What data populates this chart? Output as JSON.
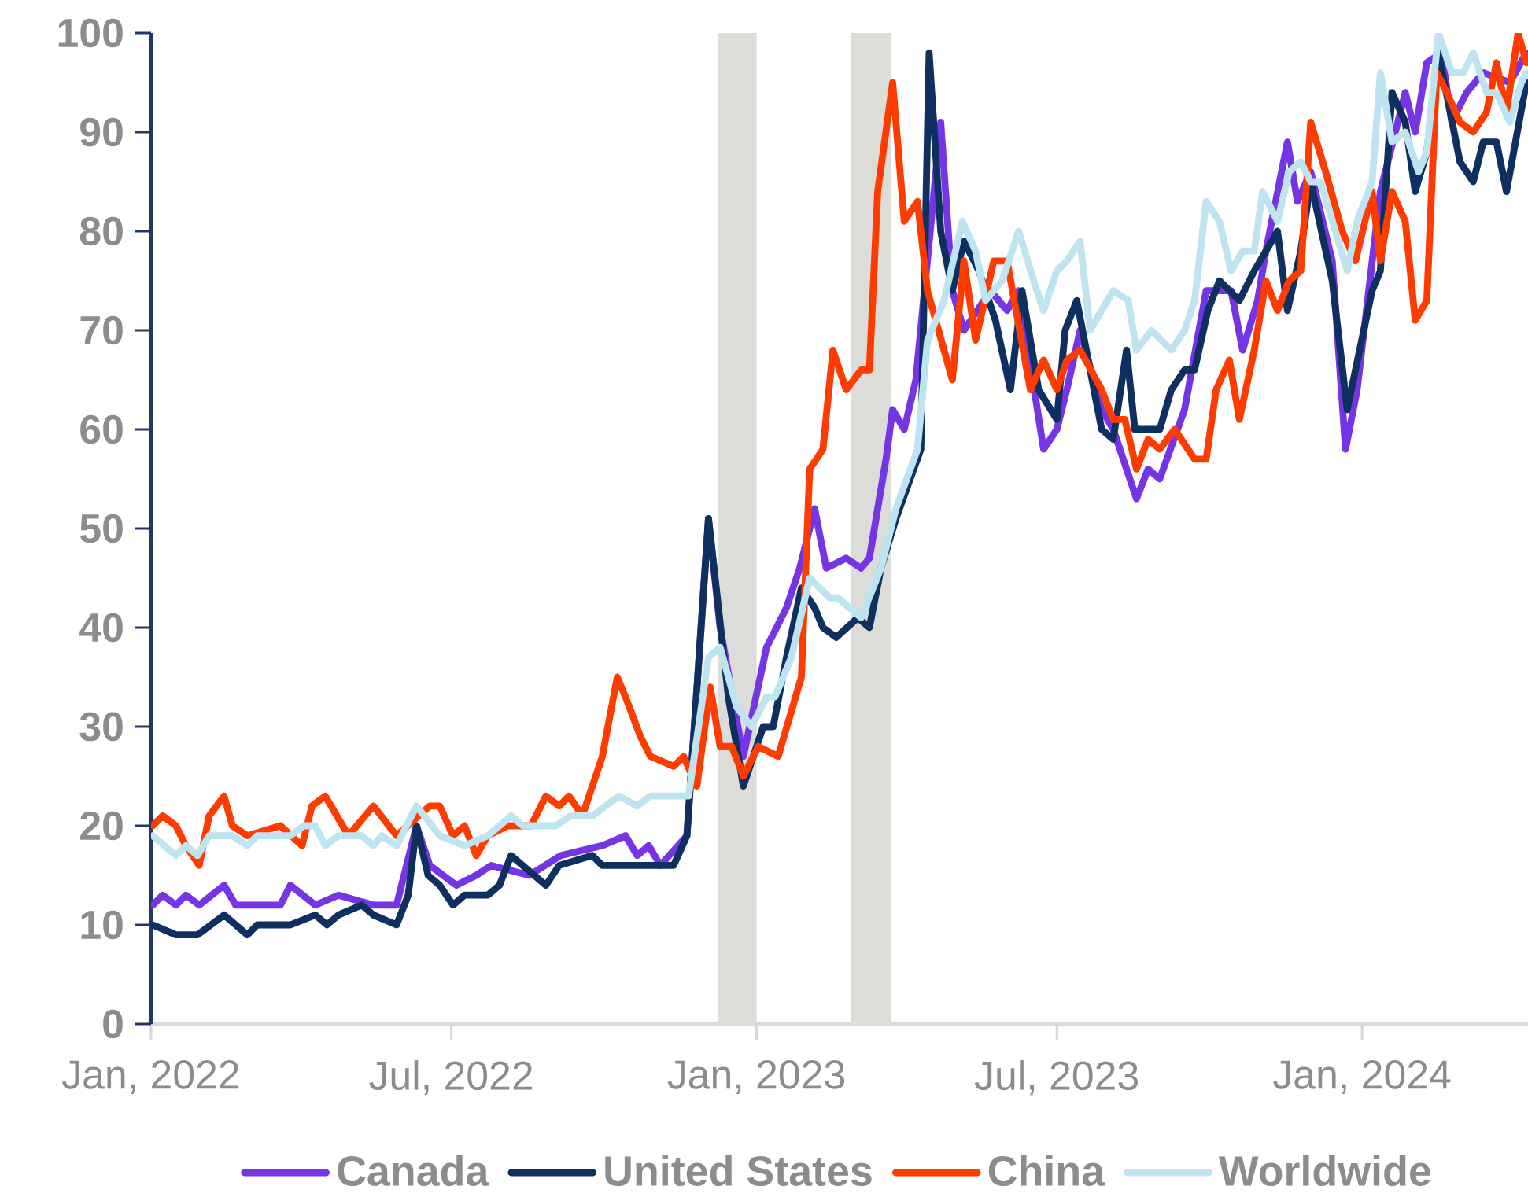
{
  "chart_data": {
    "type": "line",
    "xlim": [
      "2022-01-01",
      "2024-04-10"
    ],
    "ylim": [
      0,
      100
    ],
    "xticks": [
      {
        "value": "2022-01-01",
        "label": "Jan, 2022"
      },
      {
        "value": "2022-07-01",
        "label": "Jul, 2022"
      },
      {
        "value": "2023-01-01",
        "label": "Jan, 2023"
      },
      {
        "value": "2023-07-01",
        "label": "Jul, 2023"
      },
      {
        "value": "2024-01-01",
        "label": "Jan, 2024"
      }
    ],
    "yticks": [
      0,
      10,
      20,
      30,
      40,
      50,
      60,
      70,
      80,
      90,
      100
    ],
    "legend": "bottom",
    "marker": "none",
    "line_style": "solid",
    "bands": [
      {
        "axis": "x",
        "from": "2022-12-09",
        "to": "2023-01-01",
        "color": "#dcddd8"
      },
      {
        "axis": "x",
        "from": "2023-02-27",
        "to": "2023-03-23",
        "color": "#dcddd8"
      }
    ],
    "series": [
      {
        "name": "Canada",
        "color": "#7535e5",
        "x": [
          "2022-01-02",
          "2022-01-08",
          "2022-01-16",
          "2022-01-22",
          "2022-01-30",
          "2022-02-14",
          "2022-02-21",
          "2022-03-20",
          "2022-03-26",
          "2022-04-10",
          "2022-04-24",
          "2022-05-15",
          "2022-05-29",
          "2022-06-10",
          "2022-06-18",
          "2022-06-26",
          "2022-07-04",
          "2022-07-16",
          "2022-07-25",
          "2022-08-17",
          "2022-09-05",
          "2022-09-30",
          "2022-10-14",
          "2022-10-21",
          "2022-10-28",
          "2022-11-04",
          "2022-11-20",
          "2022-12-03",
          "2022-12-10",
          "2022-12-24",
          "2023-01-07",
          "2023-01-19",
          "2023-01-27",
          "2023-02-05",
          "2023-02-12",
          "2023-02-24",
          "2023-03-05",
          "2023-03-10",
          "2023-03-20",
          "2023-03-24",
          "2023-03-31",
          "2023-04-07",
          "2023-04-22",
          "2023-04-29",
          "2023-05-06",
          "2023-05-22",
          "2023-06-01",
          "2023-06-08",
          "2023-06-23",
          "2023-07-01",
          "2023-07-07",
          "2023-07-15",
          "2023-07-28",
          "2023-08-04",
          "2023-08-18",
          "2023-08-25",
          "2023-09-01",
          "2023-09-16",
          "2023-09-29",
          "2023-10-14",
          "2023-10-21",
          "2023-10-30",
          "2023-11-04",
          "2023-11-17",
          "2023-11-23",
          "2023-12-01",
          "2023-12-14",
          "2023-12-22",
          "2023-12-29",
          "2024-01-12",
          "2024-01-27",
          "2024-02-02",
          "2024-02-09",
          "2024-02-18",
          "2024-02-24",
          "2024-03-04",
          "2024-03-14",
          "2024-03-30",
          "2024-04-09"
        ],
        "values": [
          12,
          13,
          12,
          13,
          12,
          14,
          12,
          12,
          14,
          12,
          13,
          12,
          12,
          20,
          16,
          15,
          14,
          15,
          16,
          15,
          17,
          18,
          19,
          17,
          18,
          16,
          19,
          51,
          40,
          27,
          38,
          42,
          46,
          52,
          46,
          47,
          46,
          47,
          57,
          62,
          60,
          65,
          91,
          74,
          70,
          74,
          72,
          74,
          58,
          60,
          64,
          70,
          62,
          60,
          53,
          56,
          55,
          62,
          74,
          74,
          68,
          73,
          78,
          89,
          83,
          86,
          77,
          58,
          64,
          84,
          94,
          90,
          97,
          98,
          91,
          94,
          96,
          95,
          98
        ]
      },
      {
        "name": "United States",
        "color": "#0e3060",
        "x": [
          "2022-01-02",
          "2022-01-16",
          "2022-01-29",
          "2022-02-14",
          "2022-02-28",
          "2022-03-06",
          "2022-03-26",
          "2022-04-10",
          "2022-04-17",
          "2022-04-24",
          "2022-05-08",
          "2022-05-15",
          "2022-05-29",
          "2022-06-05",
          "2022-06-10",
          "2022-06-17",
          "2022-06-24",
          "2022-07-02",
          "2022-07-09",
          "2022-07-23",
          "2022-07-30",
          "2022-08-06",
          "2022-08-27",
          "2022-09-04",
          "2022-09-24",
          "2022-09-30",
          "2022-11-12",
          "2022-11-20",
          "2022-12-03",
          "2022-12-15",
          "2022-12-24",
          "2023-01-05",
          "2023-01-11",
          "2023-01-19",
          "2023-01-28",
          "2023-02-05",
          "2023-02-10",
          "2023-02-18",
          "2023-03-03",
          "2023-03-10",
          "2023-03-17",
          "2023-03-26",
          "2023-04-10",
          "2023-04-15",
          "2023-04-22",
          "2023-04-29",
          "2023-05-06",
          "2023-05-15",
          "2023-05-25",
          "2023-06-03",
          "2023-06-10",
          "2023-06-20",
          "2023-07-01",
          "2023-07-06",
          "2023-07-13",
          "2023-07-28",
          "2023-08-04",
          "2023-08-12",
          "2023-08-17",
          "2023-09-01",
          "2023-09-08",
          "2023-09-16",
          "2023-09-22",
          "2023-09-30",
          "2023-10-07",
          "2023-10-19",
          "2023-10-28",
          "2023-11-04",
          "2023-11-11",
          "2023-11-17",
          "2023-11-25",
          "2023-12-01",
          "2023-12-14",
          "2023-12-23",
          "2024-01-07",
          "2024-01-12",
          "2024-01-19",
          "2024-01-27",
          "2024-02-02",
          "2024-02-09",
          "2024-02-16",
          "2024-02-29",
          "2024-03-08",
          "2024-03-14",
          "2024-03-22",
          "2024-03-28",
          "2024-04-09"
        ],
        "values": [
          10,
          9,
          9,
          11,
          9,
          10,
          10,
          11,
          10,
          11,
          12,
          11,
          10,
          13,
          20,
          15,
          14,
          12,
          13,
          13,
          14,
          17,
          14,
          16,
          17,
          16,
          16,
          19,
          51,
          33,
          24,
          30,
          30,
          37,
          44,
          42,
          40,
          39,
          41,
          40,
          46,
          51,
          58,
          98,
          80,
          74,
          79,
          76,
          71,
          64,
          74,
          64,
          61,
          70,
          73,
          60,
          59,
          68,
          60,
          60,
          64,
          66,
          66,
          72,
          75,
          73,
          76,
          78,
          80,
          72,
          78,
          85,
          75,
          62,
          74,
          76,
          94,
          91,
          84,
          88,
          98,
          87,
          85,
          89,
          89,
          84,
          95
        ]
      },
      {
        "name": "China",
        "color": "#ff3c00",
        "x": [
          "2022-01-02",
          "2022-01-08",
          "2022-01-16",
          "2022-01-22",
          "2022-01-30",
          "2022-02-05",
          "2022-02-14",
          "2022-02-19",
          "2022-02-28",
          "2022-03-20",
          "2022-04-02",
          "2022-04-08",
          "2022-04-16",
          "2022-04-30",
          "2022-05-15",
          "2022-05-29",
          "2022-06-18",
          "2022-06-24",
          "2022-07-02",
          "2022-07-09",
          "2022-07-16",
          "2022-07-23",
          "2022-08-04",
          "2022-08-18",
          "2022-08-27",
          "2022-09-04",
          "2022-09-10",
          "2022-09-18",
          "2022-09-30",
          "2022-10-09",
          "2022-10-14",
          "2022-10-23",
          "2022-10-29",
          "2022-11-12",
          "2022-11-18",
          "2022-11-26",
          "2022-12-04",
          "2022-12-10",
          "2022-12-17",
          "2022-12-24",
          "2023-01-02",
          "2023-01-14",
          "2023-01-28",
          "2023-02-02",
          "2023-02-10",
          "2023-02-16",
          "2023-02-24",
          "2023-03-05",
          "2023-03-10",
          "2023-03-15",
          "2023-03-24",
          "2023-03-31",
          "2023-04-08",
          "2023-04-14",
          "2023-04-29",
          "2023-05-06",
          "2023-05-13",
          "2023-05-24",
          "2023-06-01",
          "2023-06-15",
          "2023-06-23",
          "2023-07-01",
          "2023-07-07",
          "2023-07-15",
          "2023-07-28",
          "2023-08-04",
          "2023-08-11",
          "2023-08-18",
          "2023-08-25",
          "2023-09-01",
          "2023-09-10",
          "2023-09-22",
          "2023-09-29",
          "2023-10-05",
          "2023-10-13",
          "2023-10-19",
          "2023-10-28",
          "2023-11-04",
          "2023-11-11",
          "2023-11-18",
          "2023-11-25",
          "2023-12-01",
          "2023-12-10",
          "2023-12-20",
          "2023-12-28",
          "2024-01-07",
          "2024-01-12",
          "2024-01-19",
          "2024-01-27",
          "2024-02-02",
          "2024-02-09",
          "2024-02-15",
          "2024-02-21",
          "2024-02-29",
          "2024-03-08",
          "2024-03-16",
          "2024-03-22",
          "2024-03-28",
          "2024-04-04",
          "2024-04-09"
        ],
        "values": [
          20,
          21,
          20,
          18,
          16,
          21,
          23,
          20,
          19,
          20,
          18,
          22,
          23,
          19,
          22,
          19,
          22,
          22,
          19,
          20,
          17,
          19,
          20,
          20,
          23,
          22,
          23,
          21,
          27,
          35,
          33,
          29,
          27,
          26,
          27,
          24,
          34,
          28,
          28,
          25,
          28,
          27,
          35,
          56,
          58,
          68,
          64,
          66,
          66,
          84,
          95,
          81,
          83,
          74,
          65,
          77,
          69,
          77,
          77,
          64,
          67,
          64,
          67,
          68,
          64,
          61,
          61,
          56,
          59,
          58,
          60,
          57,
          57,
          64,
          67,
          61,
          68,
          75,
          72,
          75,
          76,
          91,
          86,
          80,
          77,
          84,
          77,
          84,
          81,
          71,
          73,
          96,
          94,
          91,
          90,
          92,
          97,
          92,
          100,
          97
        ]
      },
      {
        "name": "Worldwide",
        "color": "#bde4f0",
        "x": [
          "2022-01-02",
          "2022-01-16",
          "2022-01-22",
          "2022-01-29",
          "2022-02-05",
          "2022-02-19",
          "2022-02-28",
          "2022-03-06",
          "2022-03-26",
          "2022-04-03",
          "2022-04-10",
          "2022-04-16",
          "2022-04-24",
          "2022-05-08",
          "2022-05-15",
          "2022-05-20",
          "2022-05-29",
          "2022-06-10",
          "2022-06-24",
          "2022-07-09",
          "2022-07-23",
          "2022-08-06",
          "2022-08-13",
          "2022-09-02",
          "2022-09-11",
          "2022-09-24",
          "2022-10-10",
          "2022-10-21",
          "2022-10-29",
          "2022-11-21",
          "2022-12-03",
          "2022-12-10",
          "2022-12-20",
          "2022-12-29",
          "2023-01-07",
          "2023-01-12",
          "2023-01-22",
          "2023-02-02",
          "2023-02-14",
          "2023-02-19",
          "2023-03-05",
          "2023-03-17",
          "2023-03-26",
          "2023-04-08",
          "2023-04-14",
          "2023-04-24",
          "2023-05-05",
          "2023-05-13",
          "2023-05-19",
          "2023-05-29",
          "2023-06-08",
          "2023-06-17",
          "2023-06-23",
          "2023-07-01",
          "2023-07-07",
          "2023-07-15",
          "2023-07-21",
          "2023-07-28",
          "2023-08-04",
          "2023-08-13",
          "2023-08-18",
          "2023-08-27",
          "2023-09-08",
          "2023-09-16",
          "2023-09-22",
          "2023-09-29",
          "2023-10-07",
          "2023-10-14",
          "2023-10-21",
          "2023-10-28",
          "2023-11-02",
          "2023-11-11",
          "2023-11-18",
          "2023-11-25",
          "2023-12-01",
          "2023-12-07",
          "2023-12-23",
          "2023-12-29",
          "2024-01-07",
          "2024-01-12",
          "2024-01-19",
          "2024-01-27",
          "2024-02-04",
          "2024-02-09",
          "2024-02-16",
          "2024-02-24",
          "2024-03-02",
          "2024-03-08",
          "2024-03-16",
          "2024-03-22",
          "2024-03-30",
          "2024-04-06",
          "2024-04-09"
        ],
        "values": [
          19,
          17,
          18,
          17,
          19,
          19,
          18,
          19,
          19,
          20,
          20,
          18,
          19,
          19,
          18,
          19,
          18,
          22,
          19,
          18,
          19,
          21,
          20,
          20,
          21,
          21,
          23,
          22,
          23,
          23,
          37,
          38,
          32,
          30,
          33,
          33,
          37,
          45,
          43,
          43,
          41,
          46,
          52,
          58,
          69,
          73,
          81,
          78,
          73,
          75,
          80,
          75,
          72,
          76,
          77,
          79,
          70,
          72,
          74,
          73,
          68,
          70,
          68,
          70,
          73,
          83,
          81,
          76,
          78,
          78,
          84,
          81,
          86,
          87,
          85,
          85,
          76,
          81,
          85,
          96,
          89,
          90,
          86,
          88,
          100,
          96,
          96,
          98,
          94,
          94,
          91,
          95,
          96
        ]
      }
    ]
  }
}
